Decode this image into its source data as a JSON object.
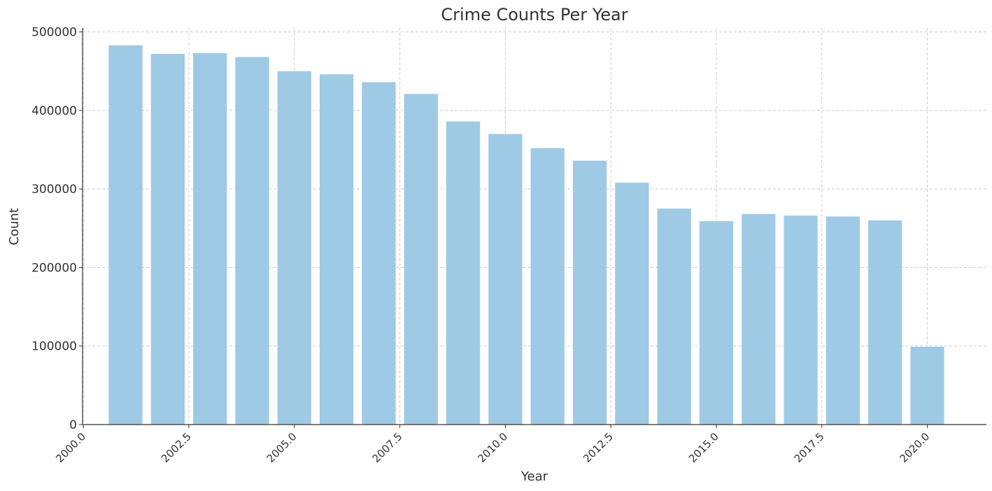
{
  "chart_data": {
    "type": "bar",
    "title": "Crime Counts Per Year",
    "xlabel": "Year",
    "ylabel": "Count",
    "x": [
      2001,
      2002,
      2003,
      2004,
      2005,
      2006,
      2007,
      2008,
      2009,
      2010,
      2011,
      2012,
      2013,
      2014,
      2015,
      2016,
      2017,
      2018,
      2019,
      2020
    ],
    "values": [
      483000,
      472000,
      473000,
      468000,
      450000,
      446000,
      436000,
      421000,
      386000,
      370000,
      352000,
      336000,
      308000,
      275000,
      259000,
      268000,
      266000,
      265000,
      260000,
      99000
    ],
    "xlim": [
      1999.98,
      2021.4
    ],
    "ylim": [
      0,
      505000
    ],
    "x_ticks": [
      "2000.0",
      "2002.5",
      "2005.0",
      "2007.5",
      "2010.0",
      "2012.5",
      "2015.0",
      "2017.5",
      "2020.0"
    ],
    "y_ticks": [
      "0",
      "100000",
      "200000",
      "300000",
      "400000",
      "500000"
    ],
    "bar_color": "#9ecae5",
    "grid": true
  }
}
